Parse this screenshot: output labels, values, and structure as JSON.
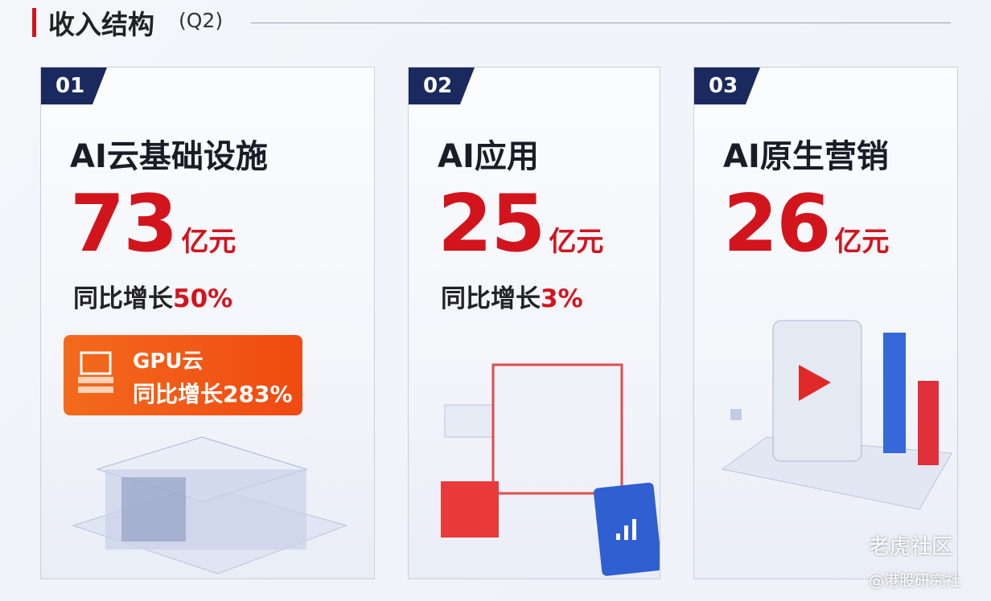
{
  "header": {
    "title": "收入结构",
    "period": "(Q2)"
  },
  "cards": [
    {
      "index": "01",
      "name": "AI云基础设施",
      "value": "73",
      "unit": "亿元",
      "growth_label": "同比增长",
      "growth": "50%",
      "badge": {
        "title": "GPU云",
        "growth_label": "同比增长",
        "growth": "283%"
      }
    },
    {
      "index": "02",
      "name": "AI应用",
      "value": "25",
      "unit": "亿元",
      "growth_label": "同比增长",
      "growth": "3%"
    },
    {
      "index": "03",
      "name": "AI原生营销",
      "value": "26",
      "unit": "亿元"
    }
  ],
  "watermarks": [
    "老虎社区",
    "@港股研究社"
  ]
}
